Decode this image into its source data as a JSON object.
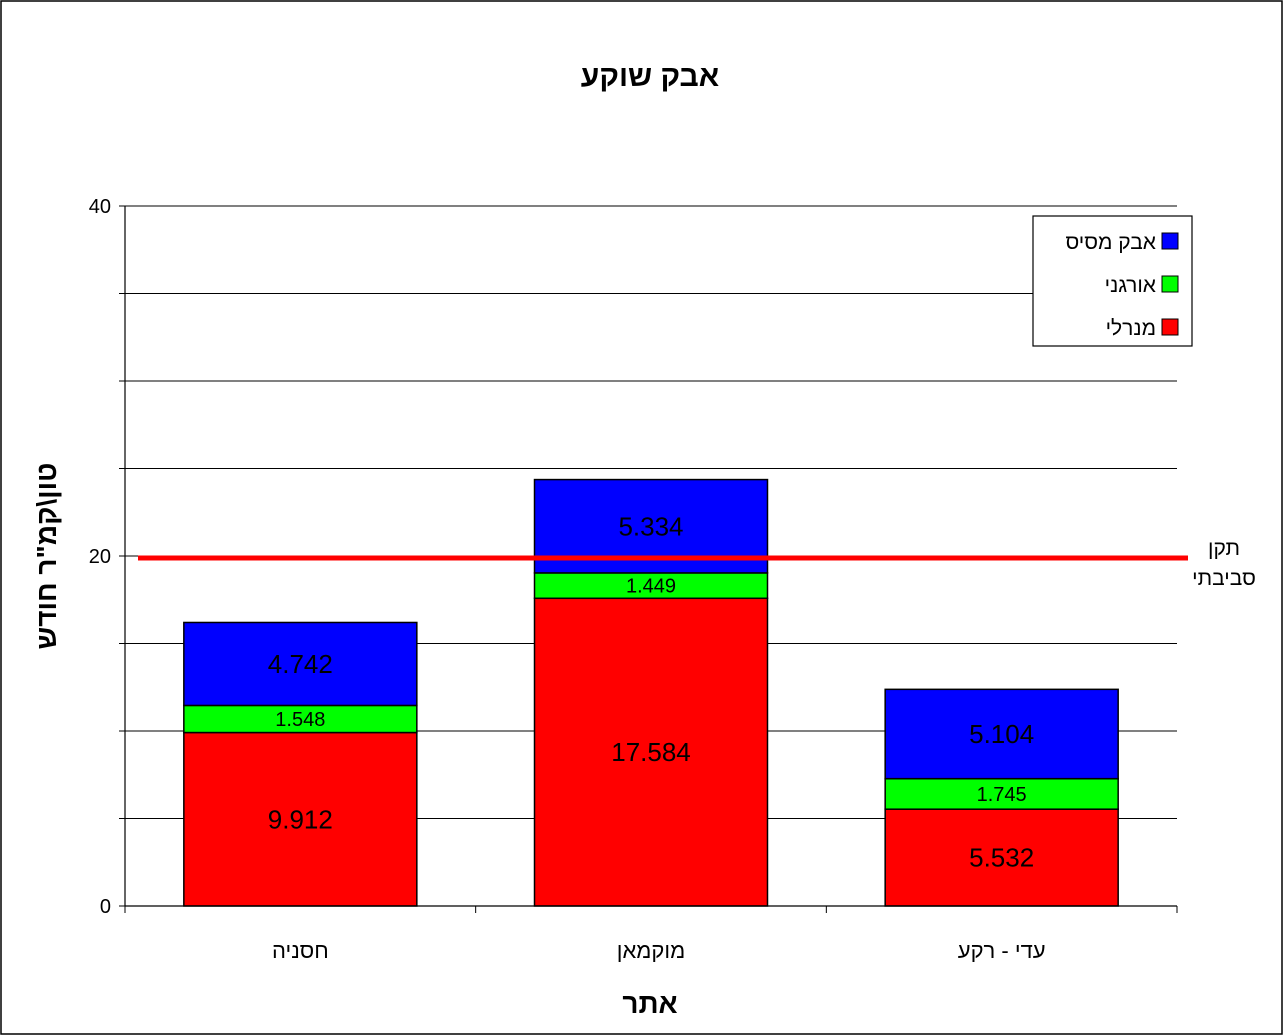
{
  "chart_data": {
    "type": "bar",
    "stacked": true,
    "title": "אבק שוקע",
    "xlabel": "אתר",
    "ylabel": "טון\\קמ\"ר חודש",
    "ylim": [
      0,
      40
    ],
    "yticks": [
      "0",
      "20",
      "40"
    ],
    "grid": true,
    "legend_position": "top-right",
    "categories": [
      "חסניה",
      "מוקמאן",
      "עדי - רקע"
    ],
    "series": [
      {
        "name": "מנרלי",
        "color": "#ff0000",
        "values": [
          9.912,
          17.584,
          5.532
        ],
        "labels": [
          "9.912",
          "17.584",
          "5.532"
        ]
      },
      {
        "name": "אורגני",
        "color": "#00ff00",
        "values": [
          1.548,
          1.449,
          1.745
        ],
        "labels": [
          "1.548",
          "1.449",
          "1.745"
        ]
      },
      {
        "name": "אבק מסיס",
        "color": "#0000ff",
        "values": [
          4.742,
          5.334,
          5.104
        ],
        "labels": [
          "4.742",
          "5.334",
          "5.104"
        ]
      }
    ],
    "reference_line": {
      "value": 20,
      "color": "#ff0000",
      "label_lines": [
        "תקן",
        "סביבתי"
      ]
    }
  }
}
